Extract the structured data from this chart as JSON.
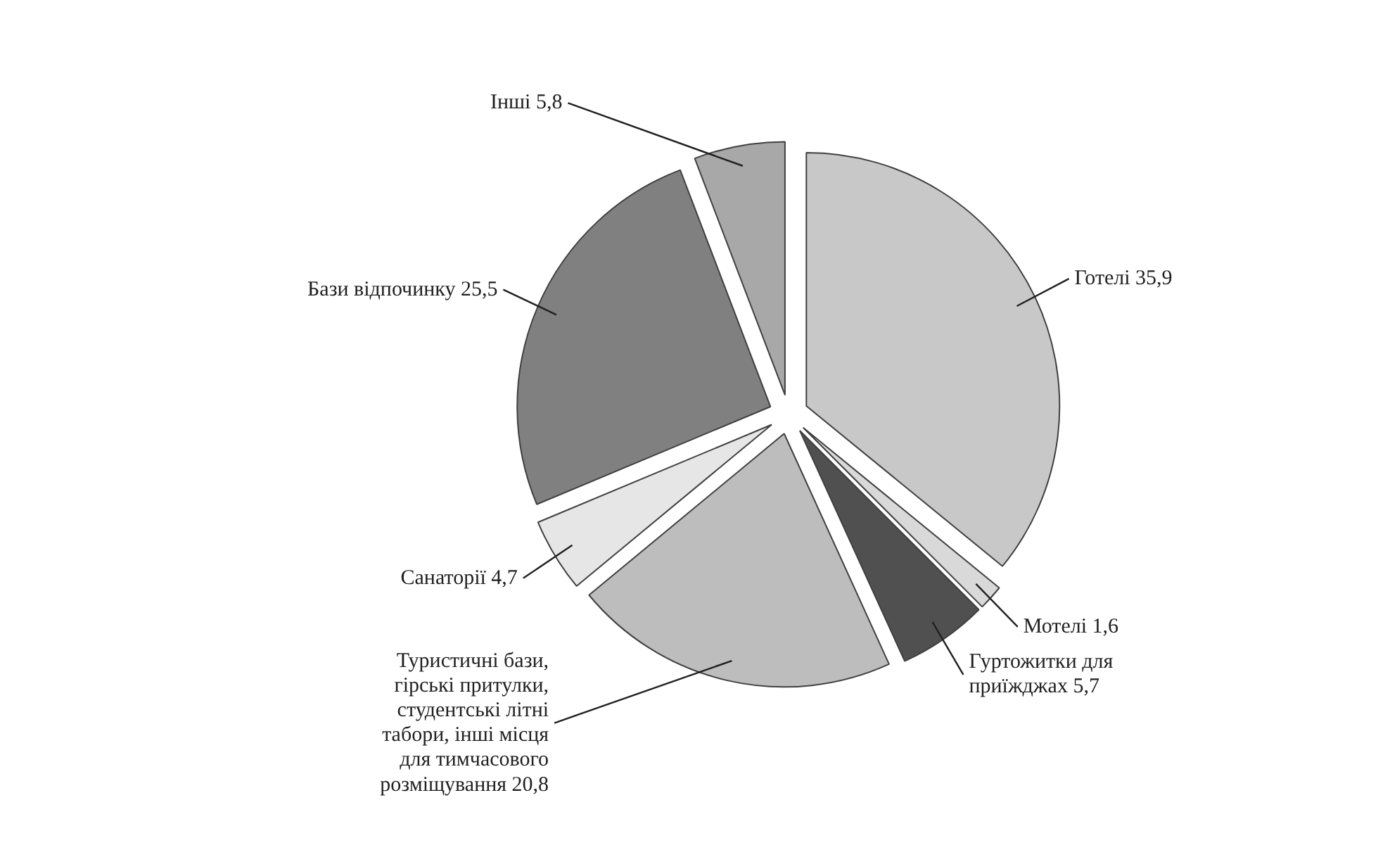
{
  "chart_data": {
    "type": "pie",
    "categories": [
      "Готелі",
      "Мотелі",
      "Гуртожитки для приїжджах",
      "Туристичні бази, гірські притулки, студентські літні табори, інші місця для тимчасового розміщування",
      "Санаторії",
      "Бази відпочинку",
      "Інші"
    ],
    "values": [
      35.9,
      1.6,
      5.7,
      20.8,
      4.7,
      25.5,
      5.8
    ],
    "value_labels": [
      "35,9",
      "1,6",
      "5,7",
      "20,8",
      "4,7",
      "25,5",
      "5,8"
    ],
    "colors": [
      "#c8c8c8",
      "#d9d9d9",
      "#505050",
      "#bdbdbd",
      "#e6e6e6",
      "#808080",
      "#a8a8a8"
    ]
  }
}
